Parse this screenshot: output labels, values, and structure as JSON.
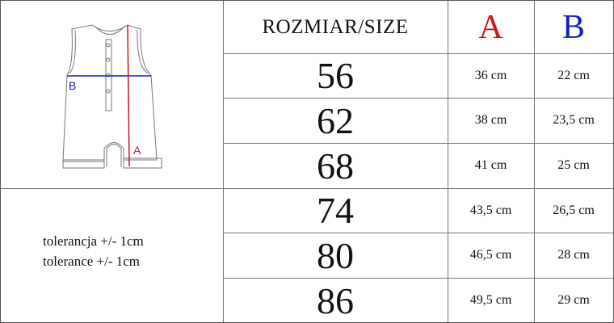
{
  "header": {
    "size_label": "ROZMIAR/SIZE",
    "col_a": "A",
    "col_b": "B"
  },
  "diagram": {
    "label_a": "A",
    "label_b": "B",
    "colors": {
      "a": "#c8161d",
      "b": "#1420b8"
    }
  },
  "tolerance": {
    "pl": "tolerancja +/- 1cm",
    "en": "tolerance +/- 1cm"
  },
  "rows": [
    {
      "size": "56",
      "a": "36 cm",
      "b": "22 cm"
    },
    {
      "size": "62",
      "a": "38 cm",
      "b": "23,5 cm"
    },
    {
      "size": "68",
      "a": "41 cm",
      "b": "25 cm"
    },
    {
      "size": "74",
      "a": "43,5 cm",
      "b": "26,5 cm"
    },
    {
      "size": "80",
      "a": "46,5 cm",
      "b": "28 cm"
    },
    {
      "size": "86",
      "a": "49,5 cm",
      "b": "29 cm"
    }
  ]
}
